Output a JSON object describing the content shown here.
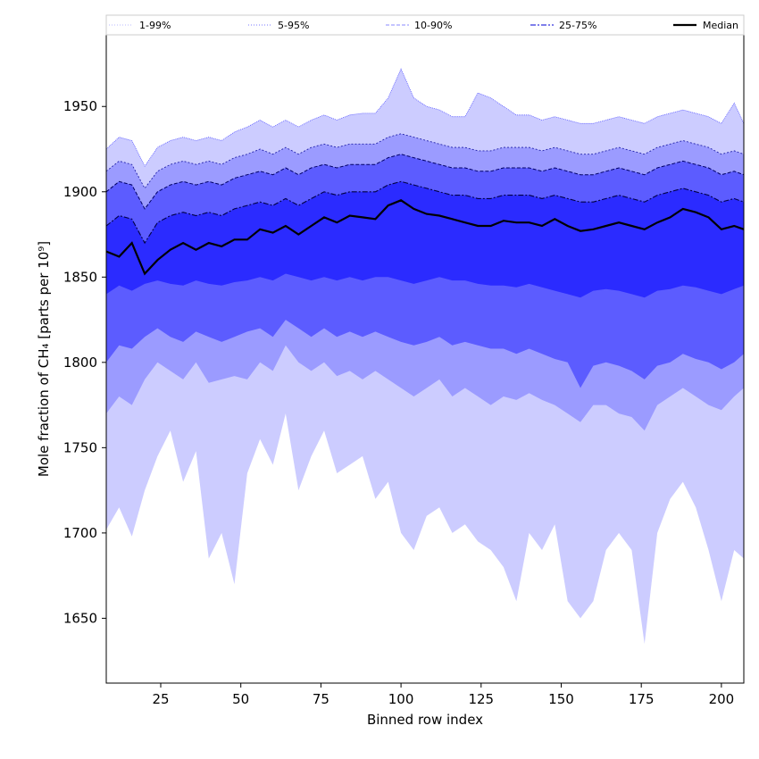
{
  "chart_data": {
    "type": "area",
    "xlabel": "Binned row index",
    "ylabel": "Mole fraction of CH₄ [parts per 10⁹]",
    "xlim": [
      8,
      207
    ],
    "ylim": [
      1612,
      1992
    ],
    "xticks": [
      25,
      50,
      75,
      100,
      125,
      150,
      175,
      200
    ],
    "yticks": [
      1650,
      1700,
      1750,
      1800,
      1850,
      1900,
      1950
    ],
    "grid": false,
    "legend_position": "top",
    "legend": [
      {
        "label": "1-99%",
        "style": "dotted",
        "color": "#b8b8ff"
      },
      {
        "label": "5-95%",
        "style": "dotted",
        "color": "#7777ff"
      },
      {
        "label": "10-90%",
        "style": "dashed",
        "color": "#8888ff"
      },
      {
        "label": "25-75%",
        "style": "dashdot",
        "color": "#3333dd"
      },
      {
        "label": "Median",
        "style": "solid",
        "color": "#000000"
      }
    ],
    "band_colors": [
      "#ccccff",
      "#9b9bff",
      "#5c5cff",
      "#2b2bff"
    ],
    "x": [
      8,
      12,
      16,
      20,
      24,
      28,
      32,
      36,
      40,
      44,
      48,
      52,
      56,
      60,
      64,
      68,
      72,
      76,
      80,
      84,
      88,
      92,
      96,
      100,
      104,
      108,
      112,
      116,
      120,
      124,
      128,
      132,
      136,
      140,
      144,
      148,
      152,
      156,
      160,
      164,
      168,
      172,
      176,
      180,
      184,
      188,
      192,
      196,
      200,
      204,
      207
    ],
    "series": [
      {
        "name": "p1",
        "values": [
          1702,
          1715,
          1698,
          1725,
          1745,
          1760,
          1730,
          1748,
          1685,
          1700,
          1670,
          1735,
          1755,
          1740,
          1770,
          1725,
          1745,
          1760,
          1735,
          1740,
          1745,
          1720,
          1730,
          1700,
          1690,
          1710,
          1715,
          1700,
          1705,
          1695,
          1690,
          1680,
          1660,
          1700,
          1690,
          1705,
          1660,
          1650,
          1660,
          1690,
          1700,
          1690,
          1635,
          1700,
          1720,
          1730,
          1715,
          1690,
          1660,
          1690,
          1685
        ]
      },
      {
        "name": "p5",
        "values": [
          1770,
          1780,
          1775,
          1790,
          1800,
          1795,
          1790,
          1800,
          1788,
          1790,
          1792,
          1790,
          1800,
          1795,
          1810,
          1800,
          1795,
          1800,
          1792,
          1795,
          1790,
          1795,
          1790,
          1785,
          1780,
          1785,
          1790,
          1780,
          1785,
          1780,
          1775,
          1780,
          1778,
          1782,
          1778,
          1775,
          1770,
          1765,
          1775,
          1775,
          1770,
          1768,
          1760,
          1775,
          1780,
          1785,
          1780,
          1775,
          1772,
          1780,
          1785
        ]
      },
      {
        "name": "p10",
        "values": [
          1800,
          1810,
          1808,
          1815,
          1820,
          1815,
          1812,
          1818,
          1815,
          1812,
          1815,
          1818,
          1820,
          1815,
          1825,
          1820,
          1815,
          1820,
          1815,
          1818,
          1815,
          1818,
          1815,
          1812,
          1810,
          1812,
          1815,
          1810,
          1812,
          1810,
          1808,
          1808,
          1805,
          1808,
          1805,
          1802,
          1800,
          1785,
          1798,
          1800,
          1798,
          1795,
          1790,
          1798,
          1800,
          1805,
          1802,
          1800,
          1796,
          1800,
          1805
        ]
      },
      {
        "name": "p25",
        "values": [
          1840,
          1845,
          1842,
          1846,
          1848,
          1846,
          1845,
          1848,
          1846,
          1845,
          1847,
          1848,
          1850,
          1848,
          1852,
          1850,
          1848,
          1850,
          1848,
          1850,
          1848,
          1850,
          1850,
          1848,
          1846,
          1848,
          1850,
          1848,
          1848,
          1846,
          1845,
          1845,
          1844,
          1846,
          1844,
          1842,
          1840,
          1838,
          1842,
          1843,
          1842,
          1840,
          1838,
          1842,
          1843,
          1845,
          1844,
          1842,
          1840,
          1843,
          1845
        ]
      },
      {
        "name": "Median",
        "values": [
          1865,
          1862,
          1870,
          1852,
          1860,
          1866,
          1870,
          1866,
          1870,
          1868,
          1872,
          1872,
          1878,
          1876,
          1880,
          1875,
          1880,
          1885,
          1882,
          1886,
          1885,
          1884,
          1892,
          1895,
          1890,
          1887,
          1886,
          1884,
          1882,
          1880,
          1880,
          1883,
          1882,
          1882,
          1880,
          1884,
          1880,
          1877,
          1878,
          1880,
          1882,
          1880,
          1878,
          1882,
          1885,
          1890,
          1888,
          1885,
          1878,
          1880,
          1878
        ]
      },
      {
        "name": "p75",
        "values": [
          1880,
          1886,
          1884,
          1870,
          1882,
          1886,
          1888,
          1886,
          1888,
          1886,
          1890,
          1892,
          1894,
          1892,
          1896,
          1892,
          1896,
          1900,
          1898,
          1900,
          1900,
          1900,
          1904,
          1906,
          1904,
          1902,
          1900,
          1898,
          1898,
          1896,
          1896,
          1898,
          1898,
          1898,
          1896,
          1898,
          1896,
          1894,
          1894,
          1896,
          1898,
          1896,
          1894,
          1898,
          1900,
          1902,
          1900,
          1898,
          1894,
          1896,
          1894
        ]
      },
      {
        "name": "p90",
        "values": [
          1900,
          1906,
          1904,
          1890,
          1900,
          1904,
          1906,
          1904,
          1906,
          1904,
          1908,
          1910,
          1912,
          1910,
          1914,
          1910,
          1914,
          1916,
          1914,
          1916,
          1916,
          1916,
          1920,
          1922,
          1920,
          1918,
          1916,
          1914,
          1914,
          1912,
          1912,
          1914,
          1914,
          1914,
          1912,
          1914,
          1912,
          1910,
          1910,
          1912,
          1914,
          1912,
          1910,
          1914,
          1916,
          1918,
          1916,
          1914,
          1910,
          1912,
          1910
        ]
      },
      {
        "name": "p95",
        "values": [
          1912,
          1918,
          1916,
          1902,
          1912,
          1916,
          1918,
          1916,
          1918,
          1916,
          1920,
          1922,
          1925,
          1922,
          1926,
          1922,
          1926,
          1928,
          1926,
          1928,
          1928,
          1928,
          1932,
          1934,
          1932,
          1930,
          1928,
          1926,
          1926,
          1924,
          1924,
          1926,
          1926,
          1926,
          1924,
          1926,
          1924,
          1922,
          1922,
          1924,
          1926,
          1924,
          1922,
          1926,
          1928,
          1930,
          1928,
          1926,
          1922,
          1924,
          1922
        ]
      },
      {
        "name": "p99",
        "values": [
          1925,
          1932,
          1930,
          1915,
          1926,
          1930,
          1932,
          1930,
          1932,
          1930,
          1935,
          1938,
          1942,
          1938,
          1942,
          1938,
          1942,
          1945,
          1942,
          1945,
          1946,
          1946,
          1955,
          1972,
          1955,
          1950,
          1948,
          1944,
          1944,
          1958,
          1955,
          1950,
          1945,
          1945,
          1942,
          1944,
          1942,
          1940,
          1940,
          1942,
          1944,
          1942,
          1940,
          1944,
          1946,
          1948,
          1946,
          1944,
          1940,
          1952,
          1940
        ]
      }
    ]
  }
}
